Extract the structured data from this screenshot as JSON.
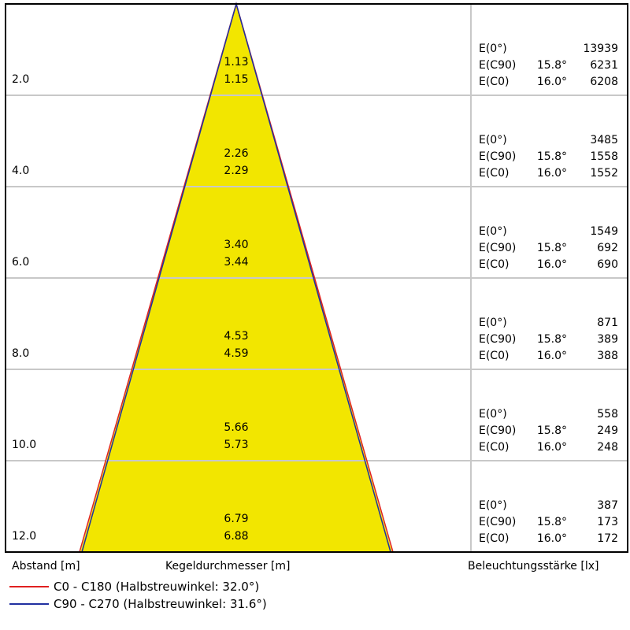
{
  "colors": {
    "cone": "#f2e600",
    "c0": "#e02020",
    "c90": "#2030a0",
    "grid": "#c8c8c8"
  },
  "rows": [
    {
      "distance": "2.0",
      "d_c90": "1.13",
      "d_c0": "1.15",
      "e0": "13939",
      "ec90": "6231",
      "ec0": "6208"
    },
    {
      "distance": "4.0",
      "d_c90": "2.26",
      "d_c0": "2.29",
      "e0": "3485",
      "ec90": "1558",
      "ec0": "1552"
    },
    {
      "distance": "6.0",
      "d_c90": "3.40",
      "d_c0": "3.44",
      "e0": "1549",
      "ec90": "692",
      "ec0": "690"
    },
    {
      "distance": "8.0",
      "d_c90": "4.53",
      "d_c0": "4.59",
      "e0": "871",
      "ec90": "389",
      "ec0": "388"
    },
    {
      "distance": "10.0",
      "d_c90": "5.66",
      "d_c0": "5.73",
      "e0": "558",
      "ec90": "249",
      "ec0": "248"
    },
    {
      "distance": "12.0",
      "d_c90": "6.79",
      "d_c0": "6.88",
      "e0": "387",
      "ec90": "173",
      "ec0": "172"
    }
  ],
  "labels": {
    "e0": "E(0°)",
    "ec90": "E(C90)",
    "ec0": "E(C0)",
    "angle_c90": "15.8°",
    "angle_c0": "16.0°"
  },
  "axis": {
    "distance": "Abstand [m]",
    "diameter": "Kegeldurchmesser [m]",
    "illuminance": "Beleuchtungsstärke [lx]"
  },
  "legend": [
    {
      "label": "C0 - C180 (Halbstreuwinkel: 32.0°)"
    },
    {
      "label": "C90 - C270 (Halbstreuwinkel: 31.6°)"
    }
  ]
}
